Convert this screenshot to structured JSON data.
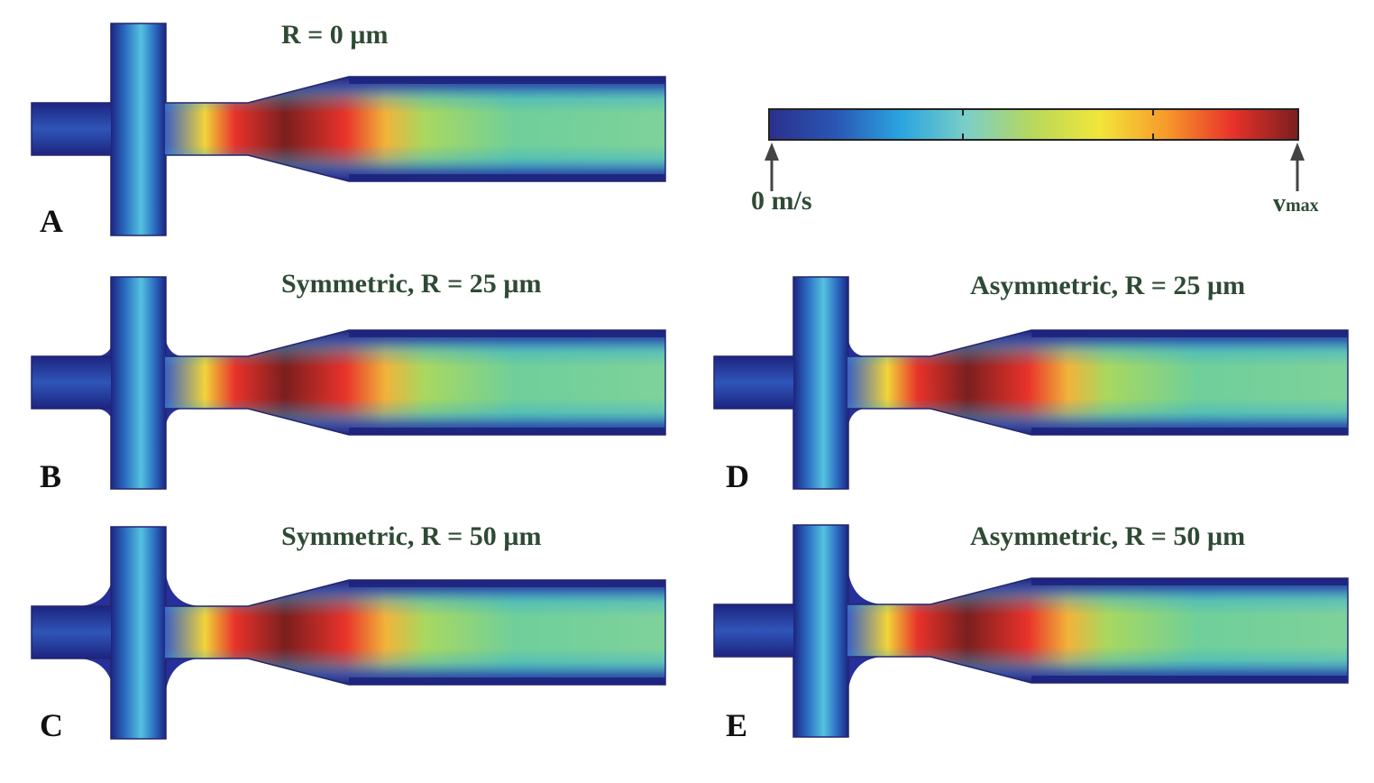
{
  "panels": [
    {
      "label": "A",
      "title": "R = 0 µm",
      "fillet_radius_um": 0,
      "fillet": "none"
    },
    {
      "label": "B",
      "title": "Symmetric, R = 25 µm",
      "fillet_radius_um": 25,
      "fillet": "symmetric"
    },
    {
      "label": "C",
      "title": "Symmetric, R = 50 µm",
      "fillet_radius_um": 50,
      "fillet": "symmetric"
    },
    {
      "label": "D",
      "title": "Asymmetric, R = 25 µm",
      "fillet_radius_um": 25,
      "fillet": "asymmetric"
    },
    {
      "label": "E",
      "title": "Asymmetric, R = 50 µm",
      "fillet_radius_um": 50,
      "fillet": "asymmetric"
    }
  ],
  "colorbar": {
    "min_label": "0 m/s",
    "max_label_v": "v",
    "max_label_sub": "max",
    "colors": [
      "#2b2f8c",
      "#2a56b3",
      "#2aa5e0",
      "#7ccfc6",
      "#b8d85a",
      "#f2e63a",
      "#f79a2b",
      "#e8322a",
      "#7a1f1f"
    ]
  },
  "colors": {
    "channel_edge": "#23256e",
    "text": "#2e4a34",
    "arrow": "#444444"
  }
}
